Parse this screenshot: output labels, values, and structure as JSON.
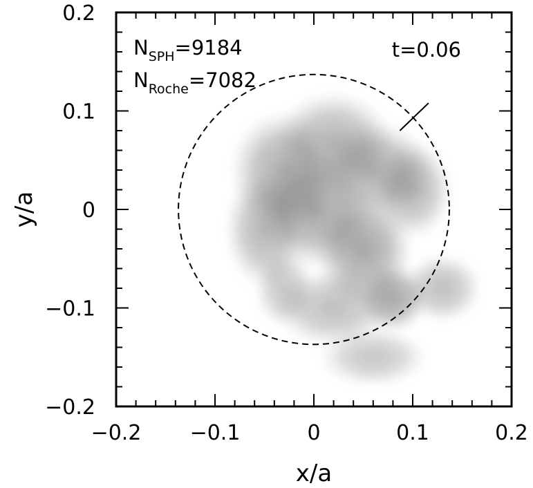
{
  "chart_data": {
    "type": "heatmap",
    "xlabel": "x/a",
    "ylabel": "y/a",
    "xlim": [
      -0.2,
      0.2
    ],
    "ylim": [
      -0.2,
      0.2
    ],
    "x_ticks": [
      {
        "value": -0.2,
        "label": "−0.2"
      },
      {
        "value": -0.1,
        "label": "−0.1"
      },
      {
        "value": 0,
        "label": "0"
      },
      {
        "value": 0.1,
        "label": "0.1"
      },
      {
        "value": 0.2,
        "label": "0.2"
      }
    ],
    "y_ticks": [
      {
        "value": -0.2,
        "label": "−0.2"
      },
      {
        "value": -0.1,
        "label": "−0.1"
      },
      {
        "value": 0,
        "label": "0"
      },
      {
        "value": 0.1,
        "label": "0.1"
      },
      {
        "value": 0.2,
        "label": "0.2"
      }
    ],
    "annotations": {
      "n_sph": {
        "base": "N",
        "sub": "SPH",
        "text": "=9184"
      },
      "n_roche": {
        "base": "N",
        "sub": "Roche",
        "text": "=7082"
      },
      "time": "t=0.06"
    },
    "roche_circle": {
      "center": [
        0,
        0
      ],
      "radius": 0.137,
      "style": "dashed"
    },
    "marker_segment": {
      "from": [
        0.087,
        0.08
      ],
      "to": [
        0.116,
        0.108
      ]
    },
    "density_blobs": [
      {
        "x": 0.02,
        "y": 0.07,
        "rx": 0.06,
        "ry": 0.05,
        "opacity": 0.45
      },
      {
        "x": -0.03,
        "y": 0.04,
        "rx": 0.055,
        "ry": 0.06,
        "opacity": 0.5
      },
      {
        "x": 0.06,
        "y": 0.04,
        "rx": 0.06,
        "ry": 0.05,
        "opacity": 0.5
      },
      {
        "x": 0.1,
        "y": 0.02,
        "rx": 0.04,
        "ry": 0.05,
        "opacity": 0.45
      },
      {
        "x": -0.05,
        "y": -0.02,
        "rx": 0.04,
        "ry": 0.06,
        "opacity": 0.45
      },
      {
        "x": 0.0,
        "y": 0.0,
        "rx": 0.06,
        "ry": 0.06,
        "opacity": 0.55
      },
      {
        "x": 0.05,
        "y": -0.04,
        "rx": 0.05,
        "ry": 0.06,
        "opacity": 0.55
      },
      {
        "x": 0.08,
        "y": -0.09,
        "rx": 0.035,
        "ry": 0.035,
        "opacity": 0.55
      },
      {
        "x": 0.13,
        "y": -0.08,
        "rx": 0.04,
        "ry": 0.035,
        "opacity": 0.4
      },
      {
        "x": 0.02,
        "y": -0.1,
        "rx": 0.06,
        "ry": 0.04,
        "opacity": 0.4
      },
      {
        "x": 0.06,
        "y": -0.15,
        "rx": 0.055,
        "ry": 0.03,
        "opacity": 0.35
      },
      {
        "x": -0.03,
        "y": -0.08,
        "rx": 0.03,
        "ry": 0.04,
        "opacity": 0.35
      }
    ]
  }
}
